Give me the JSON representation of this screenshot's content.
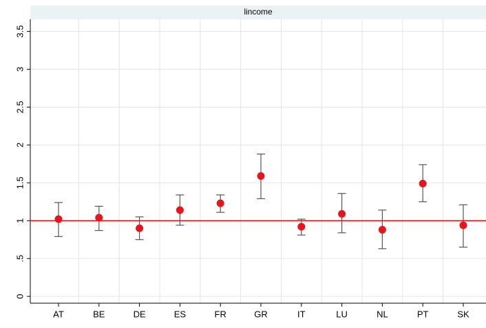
{
  "chart_data": {
    "type": "errorbar",
    "title": "lincome",
    "categories": [
      "AT",
      "BE",
      "DE",
      "ES",
      "FR",
      "GR",
      "IT",
      "LU",
      "NL",
      "PT",
      "SK"
    ],
    "series": [
      {
        "color": "#e8141b",
        "bar_color": "#555555",
        "values": [
          1.02,
          1.04,
          0.9,
          1.14,
          1.23,
          1.59,
          0.92,
          1.09,
          0.88,
          1.49,
          0.94
        ],
        "lower": [
          0.79,
          0.87,
          0.75,
          0.94,
          1.11,
          1.29,
          0.81,
          0.84,
          0.63,
          1.25,
          0.65
        ],
        "upper": [
          1.24,
          1.19,
          1.05,
          1.34,
          1.34,
          1.88,
          1.02,
          1.36,
          1.14,
          1.74,
          1.21
        ]
      }
    ],
    "ylim": [
      -0.09,
      3.66
    ],
    "yticks": [
      0,
      {
        "value": 0.5,
        "label": ".5"
      },
      1,
      1.5,
      2,
      2.5,
      3,
      3.5
    ],
    "reference_line": 1,
    "reference_color": "#e8141b",
    "grid": true
  }
}
